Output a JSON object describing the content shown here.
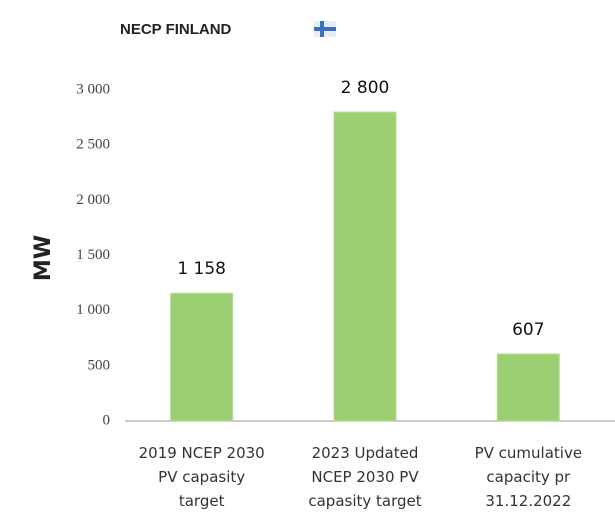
{
  "chart_data": {
    "type": "bar",
    "title": "NECP FINLAND",
    "y_label": "MW",
    "categories": [
      "2019 NCEP 2030\nPV capasity\ntarget",
      "2023 Updated\nNCEP 2030 PV\ncapasity target",
      "PV cumulative\ncapacity pr\n31.12.2022"
    ],
    "values": [
      1158,
      2800,
      607
    ],
    "value_labels": [
      "1 158",
      "2 800",
      "607"
    ],
    "color": "#9ccf72",
    "ylim": [
      0,
      3000
    ],
    "yticks": [
      0,
      500,
      {
        "value": 1000,
        "label": "1 000"
      },
      {
        "value": 1500,
        "label": "1 500"
      },
      {
        "value": 2000,
        "label": "2 000"
      },
      {
        "value": 2500,
        "label": "2 500"
      },
      {
        "value": 3000,
        "label": "3 000"
      }
    ],
    "grid": false
  }
}
